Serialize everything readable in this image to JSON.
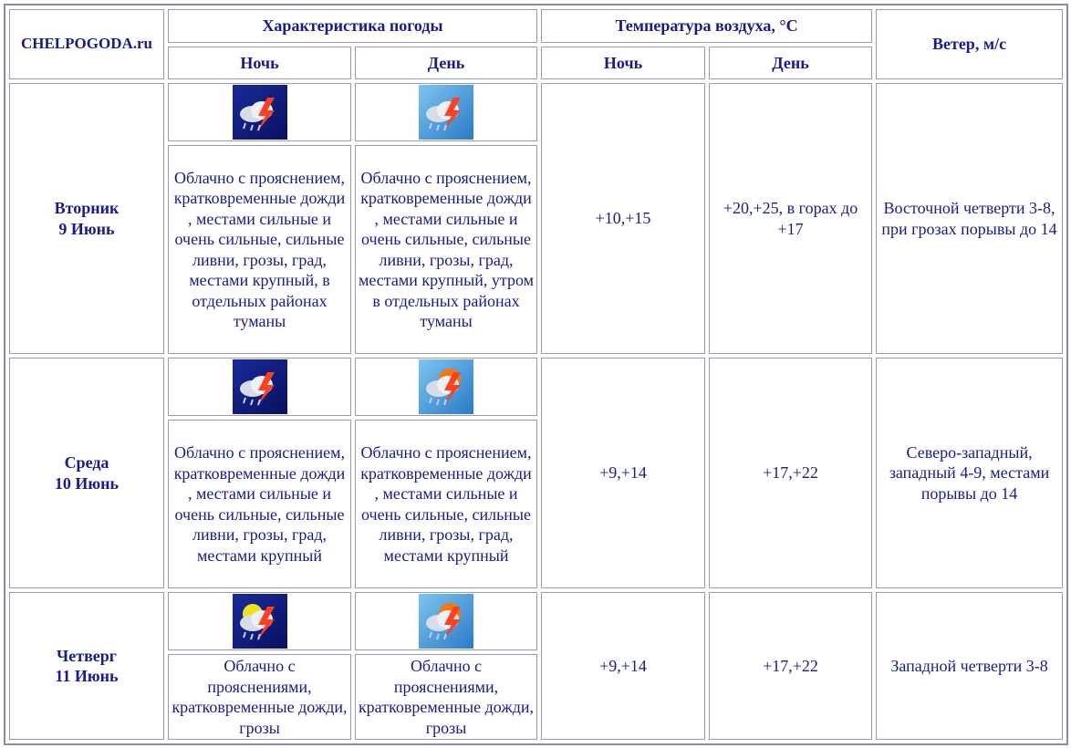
{
  "header": {
    "site": "CHELPOGODA.ru",
    "weather": "Характеристика погоды",
    "temperature": "Температура воздуха, °C",
    "wind": "Ветер, м/с",
    "night": "Ночь",
    "day": "День"
  },
  "rows": [
    {
      "weekday": "Вторник",
      "date": "9 Июнь",
      "night_desc": "Облачно с прояснением, кратковременные дожди , местами сильные и очень сильные, сильные ливни, грозы, град, местами крупный, в отдельных районах туманы",
      "day_desc": "Облачно с прояснением, кратковременные дожди , местами сильные и очень сильные, сильные ливни, грозы, град, местами крупный, утром в отдельных районах туманы",
      "temp_night": "+10,+15",
      "temp_day": "+20,+25, в горах до +17",
      "wind": "Восточной четверти 3-8, при грозах порывы до 14"
    },
    {
      "weekday": "Среда",
      "date": "10 Июнь",
      "night_desc": "Облачно с прояснением, кратковременные дожди , местами сильные и очень сильные, сильные ливни, грозы, град, местами крупный",
      "day_desc": "Облачно с прояснением, кратковременные дожди , местами сильные и очень сильные, сильные ливни, грозы, град, местами крупный",
      "temp_night": "+9,+14",
      "temp_day": "+17,+22",
      "wind": "Северо-западный, западный 4-9, местами порывы до 14"
    },
    {
      "weekday": "Четверг",
      "date": "11 Июнь",
      "night_desc": "Облачно с прояснениями, кратковременные дожди, грозы",
      "day_desc": "Облачно с прояснениями, кратковременные дожди, грозы",
      "temp_night": "+9,+14",
      "temp_day": "+17,+22",
      "wind": "Западной четверти 3-8"
    }
  ]
}
